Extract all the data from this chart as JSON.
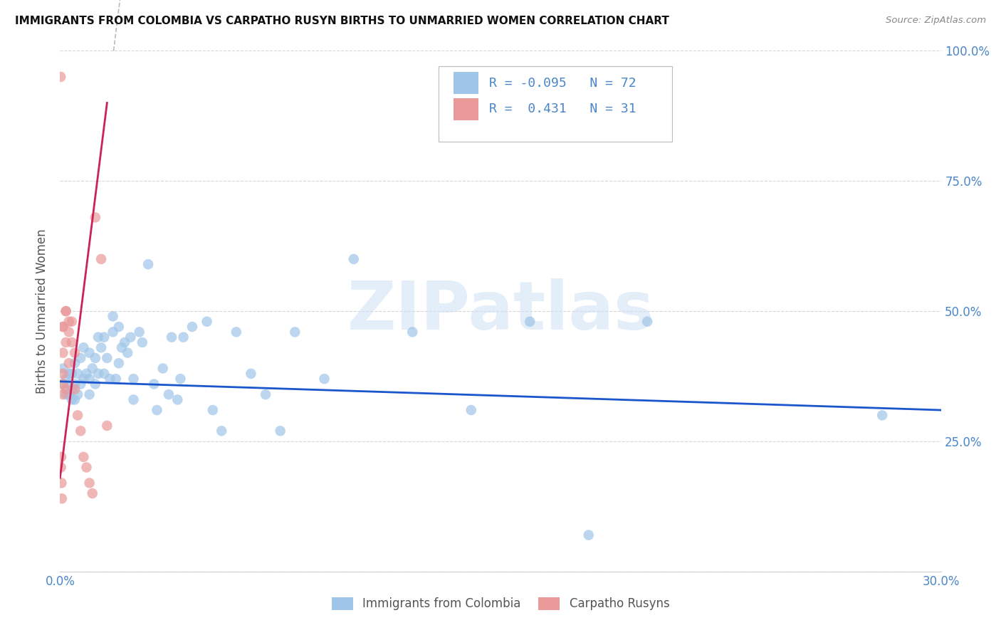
{
  "title": "IMMIGRANTS FROM COLOMBIA VS CARPATHO RUSYN BIRTHS TO UNMARRIED WOMEN CORRELATION CHART",
  "source": "Source: ZipAtlas.com",
  "ylabel": "Births to Unmarried Women",
  "xlim": [
    0.0,
    0.3
  ],
  "ylim": [
    0.0,
    1.0
  ],
  "xtick_pos": [
    0.0,
    0.05,
    0.1,
    0.15,
    0.2,
    0.25,
    0.3
  ],
  "xtick_labels": [
    "0.0%",
    "",
    "",
    "",
    "",
    "",
    "30.0%"
  ],
  "ytick_pos": [
    0.0,
    0.25,
    0.5,
    0.75,
    1.0
  ],
  "ytick_labels_right": [
    "",
    "25.0%",
    "50.0%",
    "75.0%",
    "100.0%"
  ],
  "blue_color": "#9fc5e8",
  "pink_color": "#ea9999",
  "blue_line_color": "#1a56cc",
  "pink_line_color": "#cc2255",
  "text_color": "#4a86c8",
  "grid_color": "#cccccc",
  "watermark": "ZIPatlas",
  "r_blue": "-0.095",
  "n_blue": "72",
  "r_pink": "0.431",
  "n_pink": "31",
  "blue_scatter_x": [
    0.001,
    0.001,
    0.002,
    0.002,
    0.003,
    0.003,
    0.003,
    0.004,
    0.004,
    0.004,
    0.005,
    0.005,
    0.005,
    0.006,
    0.006,
    0.007,
    0.007,
    0.008,
    0.008,
    0.009,
    0.01,
    0.01,
    0.01,
    0.011,
    0.012,
    0.012,
    0.013,
    0.013,
    0.014,
    0.015,
    0.015,
    0.016,
    0.017,
    0.018,
    0.018,
    0.019,
    0.02,
    0.02,
    0.021,
    0.022,
    0.023,
    0.024,
    0.025,
    0.025,
    0.027,
    0.028,
    0.03,
    0.032,
    0.033,
    0.035,
    0.037,
    0.038,
    0.04,
    0.041,
    0.042,
    0.045,
    0.05,
    0.052,
    0.055,
    0.06,
    0.065,
    0.07,
    0.075,
    0.08,
    0.09,
    0.1,
    0.12,
    0.14,
    0.16,
    0.18,
    0.2,
    0.28
  ],
  "blue_scatter_y": [
    0.36,
    0.39,
    0.34,
    0.37,
    0.34,
    0.36,
    0.38,
    0.33,
    0.35,
    0.38,
    0.33,
    0.36,
    0.4,
    0.34,
    0.38,
    0.36,
    0.41,
    0.37,
    0.43,
    0.38,
    0.34,
    0.37,
    0.42,
    0.39,
    0.36,
    0.41,
    0.45,
    0.38,
    0.43,
    0.38,
    0.45,
    0.41,
    0.37,
    0.46,
    0.49,
    0.37,
    0.4,
    0.47,
    0.43,
    0.44,
    0.42,
    0.45,
    0.33,
    0.37,
    0.46,
    0.44,
    0.59,
    0.36,
    0.31,
    0.39,
    0.34,
    0.45,
    0.33,
    0.37,
    0.45,
    0.47,
    0.48,
    0.31,
    0.27,
    0.46,
    0.38,
    0.34,
    0.27,
    0.46,
    0.37,
    0.6,
    0.46,
    0.31,
    0.48,
    0.07,
    0.48,
    0.3
  ],
  "pink_scatter_x": [
    0.0002,
    0.0003,
    0.0004,
    0.0005,
    0.0006,
    0.001,
    0.001,
    0.001,
    0.001,
    0.001,
    0.001,
    0.002,
    0.002,
    0.002,
    0.002,
    0.003,
    0.003,
    0.003,
    0.004,
    0.004,
    0.005,
    0.005,
    0.006,
    0.007,
    0.008,
    0.009,
    0.01,
    0.011,
    0.012,
    0.014,
    0.016
  ],
  "pink_scatter_y": [
    0.95,
    0.2,
    0.22,
    0.17,
    0.14,
    0.47,
    0.47,
    0.42,
    0.38,
    0.36,
    0.34,
    0.5,
    0.5,
    0.44,
    0.35,
    0.48,
    0.46,
    0.4,
    0.48,
    0.44,
    0.42,
    0.35,
    0.3,
    0.27,
    0.22,
    0.2,
    0.17,
    0.15,
    0.68,
    0.6,
    0.28
  ],
  "blue_trend_x": [
    0.0,
    0.3
  ],
  "blue_trend_y": [
    0.365,
    0.31
  ],
  "pink_trend_x": [
    0.0,
    0.016
  ],
  "pink_trend_y": [
    0.18,
    0.9
  ]
}
